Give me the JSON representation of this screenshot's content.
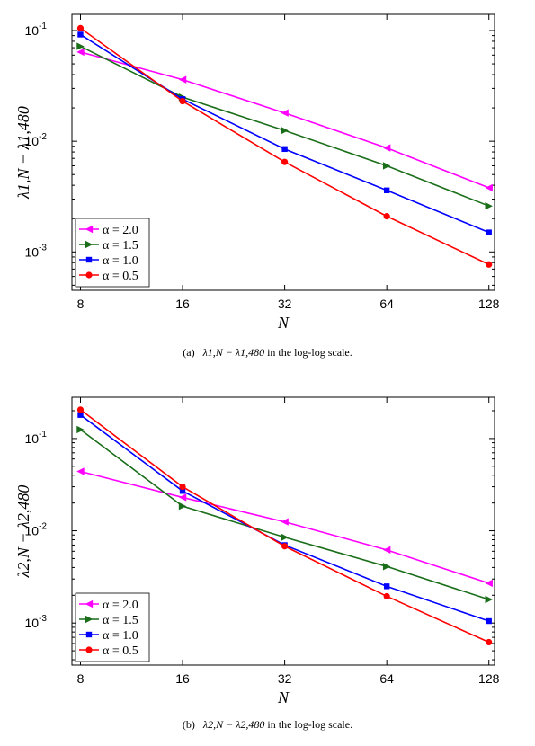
{
  "chart_data": [
    {
      "type": "line",
      "scale": "log-log",
      "x": [
        8,
        16,
        32,
        64,
        128
      ],
      "x_tick_labels": [
        "8",
        "16",
        "32",
        "64",
        "128"
      ],
      "xlabel": "N",
      "ylabel": "λ1,N − λ1,480",
      "y_tick_labels": [
        "10-1",
        "10-2",
        "10-3"
      ],
      "ylim": [
        0.00045,
        0.14
      ],
      "grid": false,
      "legend_position": "bottom-left",
      "series": [
        {
          "name": "α = 2.0",
          "color": "#ff00ff",
          "marker": "triangle-left",
          "values": [
            0.064,
            0.036,
            0.018,
            0.0087,
            0.0038
          ]
        },
        {
          "name": "α = 1.5",
          "color": "#1a6e1a",
          "marker": "triangle-right",
          "values": [
            0.072,
            0.025,
            0.0125,
            0.006,
            0.0026
          ]
        },
        {
          "name": "α = 1.0",
          "color": "#0000ff",
          "marker": "square",
          "values": [
            0.092,
            0.024,
            0.0085,
            0.0036,
            0.0015
          ]
        },
        {
          "name": "α = 0.5",
          "color": "#ff0000",
          "marker": "circle",
          "values": [
            0.105,
            0.023,
            0.0065,
            0.0021,
            0.00077
          ]
        }
      ],
      "caption": {
        "tag": "(a)",
        "expr": "λ1,N − λ1,480",
        "text": "in the log-log scale."
      }
    },
    {
      "type": "line",
      "scale": "log-log",
      "x": [
        8,
        16,
        32,
        64,
        128
      ],
      "x_tick_labels": [
        "8",
        "16",
        "32",
        "64",
        "128"
      ],
      "xlabel": "N",
      "ylabel": "λ2,N − λ2,480",
      "y_tick_labels": [
        "10-1",
        "10-2",
        "10-3"
      ],
      "ylim": [
        0.00035,
        0.28
      ],
      "grid": false,
      "legend_position": "bottom-left",
      "series": [
        {
          "name": "α = 2.0",
          "color": "#ff00ff",
          "marker": "triangle-left",
          "values": [
            0.044,
            0.023,
            0.0125,
            0.0062,
            0.0027
          ]
        },
        {
          "name": "α = 1.5",
          "color": "#1a6e1a",
          "marker": "triangle-right",
          "values": [
            0.125,
            0.0185,
            0.0085,
            0.0041,
            0.0018
          ]
        },
        {
          "name": "α = 1.0",
          "color": "#0000ff",
          "marker": "square",
          "values": [
            0.18,
            0.027,
            0.007,
            0.0025,
            0.00105
          ]
        },
        {
          "name": "α = 0.5",
          "color": "#ff0000",
          "marker": "circle",
          "values": [
            0.205,
            0.03,
            0.0068,
            0.00195,
            0.00062
          ]
        }
      ],
      "caption": {
        "tag": "(b)",
        "expr": "λ2,N − λ2,480",
        "text": "in the log-log scale."
      }
    }
  ]
}
